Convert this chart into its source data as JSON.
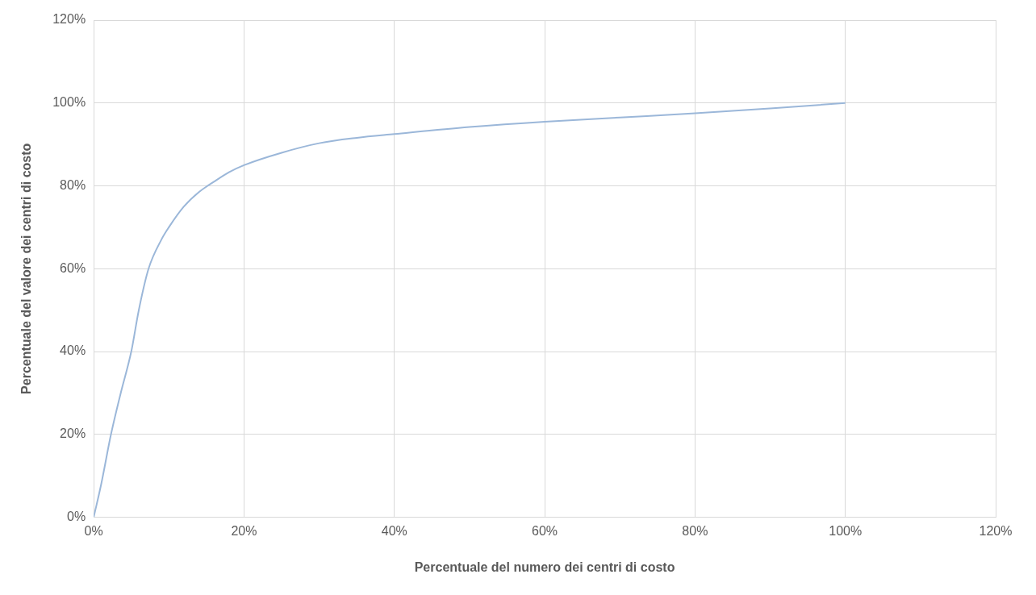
{
  "chart_data": {
    "type": "line",
    "xlabel": "Percentuale del numero dei centri di costo",
    "ylabel": "Percentuale del valore dei centri di costo",
    "x": [
      0,
      1,
      2.3,
      3.6,
      5,
      6,
      7.3,
      9,
      10,
      12,
      14,
      16,
      18,
      20,
      25,
      30,
      35,
      40,
      50,
      60,
      70,
      80,
      90,
      100
    ],
    "series": [
      {
        "color": "#9bb7d9",
        "values": [
          0,
          8,
          20,
          30,
          40,
          50,
          60,
          67,
          70,
          75,
          78.5,
          81,
          83.3,
          85,
          88,
          90.3,
          91.6,
          92.5,
          94.2,
          95.5,
          96.5,
          97.5,
          98.7,
          100
        ]
      }
    ],
    "xlim": [
      0,
      120
    ],
    "ylim": [
      0,
      120
    ],
    "xticks": [
      {
        "value": 0,
        "label": "0%"
      },
      {
        "value": 20,
        "label": "20%"
      },
      {
        "value": 40,
        "label": "40%"
      },
      {
        "value": 60,
        "label": "60%"
      },
      {
        "value": 80,
        "label": "80%"
      },
      {
        "value": 100,
        "label": "100%"
      },
      {
        "value": 120,
        "label": "120%"
      }
    ],
    "yticks": [
      {
        "value": 0,
        "label": "0%"
      },
      {
        "value": 20,
        "label": "20%"
      },
      {
        "value": 40,
        "label": "40%"
      },
      {
        "value": 60,
        "label": "60%"
      },
      {
        "value": 80,
        "label": "80%"
      },
      {
        "value": 100,
        "label": "100%"
      },
      {
        "value": 120,
        "label": "120%"
      }
    ],
    "grid": true,
    "legend": false,
    "marker": "none",
    "line_style": "solid"
  }
}
